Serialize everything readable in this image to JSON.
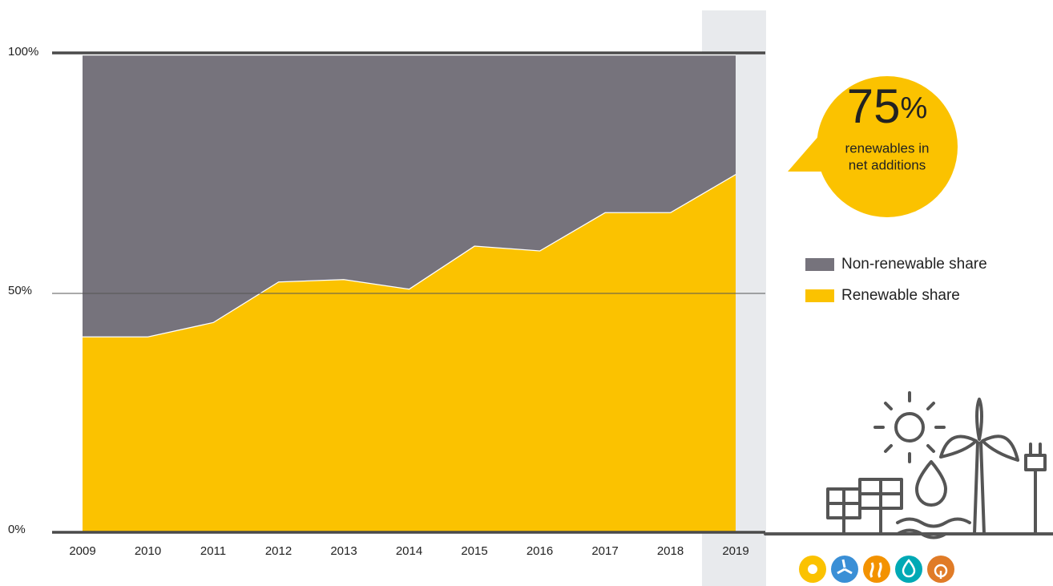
{
  "chart_data": {
    "type": "stacked-area",
    "categories": [
      "2009",
      "2010",
      "2011",
      "2012",
      "2013",
      "2014",
      "2015",
      "2016",
      "2017",
      "2018",
      "2019"
    ],
    "series": [
      {
        "name": "Non-renewable share",
        "color": "#76737c",
        "values": [
          59,
          59,
          56,
          47.5,
          47,
          49,
          40,
          41,
          33,
          33,
          25
        ]
      },
      {
        "name": "Renewable share",
        "color": "#fbc200",
        "values": [
          41,
          41,
          44,
          52.5,
          53,
          51,
          60,
          59,
          67,
          67,
          75
        ]
      }
    ],
    "ylim": [
      0,
      100
    ],
    "yticks": [
      {
        "value": 0,
        "label": "0%"
      },
      {
        "value": 50,
        "label": "50%"
      },
      {
        "value": 100,
        "label": "100%"
      }
    ],
    "callout": {
      "figure": "75",
      "unit": "%",
      "lines": [
        "renewables in",
        "net additions"
      ]
    }
  }
}
